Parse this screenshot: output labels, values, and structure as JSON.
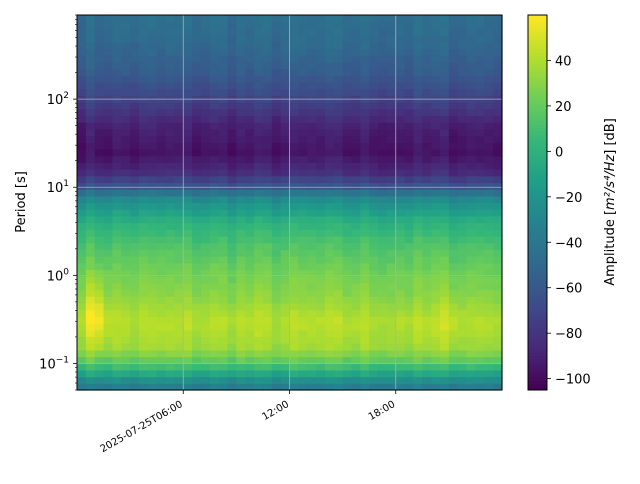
{
  "chart_data": {
    "type": "heatmap",
    "title": "",
    "xlabel": "",
    "ylabel": "Period [s]",
    "y_scale": "log",
    "grid": true,
    "colormap": "viridis",
    "x_range": [
      "2025-07-25T00:00",
      "2025-07-25T23:30"
    ],
    "x_step_minutes": 30,
    "x_ticks": [
      {
        "time": "2025-07-25T06:00",
        "label": "2025-07-25T06:00"
      },
      {
        "time": "2025-07-25T12:00",
        "label": "12:00"
      },
      {
        "time": "2025-07-25T18:00",
        "label": "18:00"
      }
    ],
    "y_range": [
      0.05,
      900
    ],
    "y_ticks": [
      {
        "value": 0.1,
        "label": "10",
        "exp": "−1"
      },
      {
        "value": 1,
        "label": "10",
        "exp": "0"
      },
      {
        "value": 10,
        "label": "10",
        "exp": "1"
      },
      {
        "value": 100,
        "label": "10",
        "exp": "2"
      }
    ],
    "colorbar": {
      "label": "Amplitude [m²/s⁴/Hz] [dB]",
      "label_main": "Amplitude [",
      "label_unit": "m²/s⁴/Hz",
      "label_tail": "] [dB]",
      "min": -105,
      "max": 60,
      "ticks": [
        -100,
        -80,
        -60,
        -40,
        -20,
        0,
        20,
        40
      ]
    },
    "amplitude_profile_db": [
      {
        "period_s": 0.05,
        "db": -40
      },
      {
        "period_s": 0.06,
        "db": -30
      },
      {
        "period_s": 0.08,
        "db": -5
      },
      {
        "period_s": 0.1,
        "db": 15
      },
      {
        "period_s": 0.15,
        "db": 35
      },
      {
        "period_s": 0.3,
        "db": 42
      },
      {
        "period_s": 0.6,
        "db": 30
      },
      {
        "period_s": 1,
        "db": 25
      },
      {
        "period_s": 2,
        "db": 15
      },
      {
        "period_s": 4,
        "db": 0
      },
      {
        "period_s": 8,
        "db": -30
      },
      {
        "period_s": 10,
        "db": -60
      },
      {
        "period_s": 15,
        "db": -85
      },
      {
        "period_s": 25,
        "db": -97
      },
      {
        "period_s": 50,
        "db": -90
      },
      {
        "period_s": 100,
        "db": -72
      },
      {
        "period_s": 200,
        "db": -58
      },
      {
        "period_s": 400,
        "db": -50
      },
      {
        "period_s": 900,
        "db": -45
      }
    ],
    "hotspots": [
      {
        "time": "2025-07-25T01:00",
        "period_s": 0.4,
        "db": 58
      },
      {
        "time": "2025-07-25T21:00",
        "period_s": 0.3,
        "db": 48
      }
    ]
  },
  "colors": {
    "grid": "#b0b0b0",
    "axes": "#000000"
  }
}
